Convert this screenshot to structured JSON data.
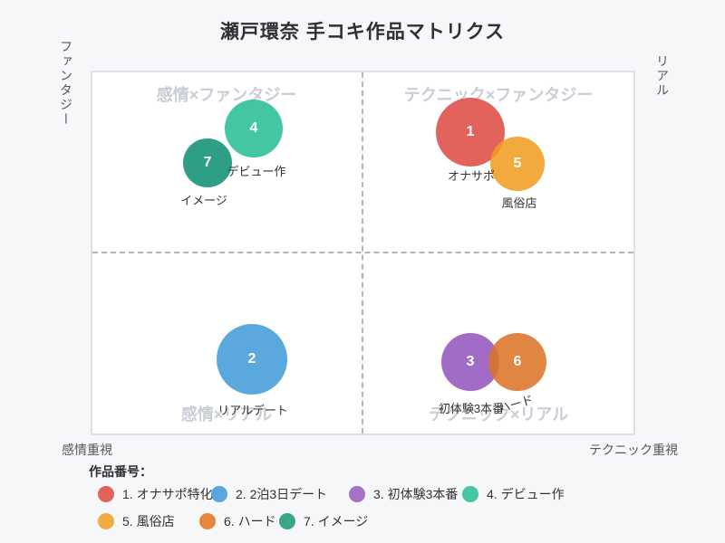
{
  "title": "瀬戸環奈 手コキ作品マトリクス",
  "axes": {
    "y_top_left": "ファンタジー",
    "y_top_right": "リアル",
    "x_left": "感情重視",
    "x_right": "テクニック重視"
  },
  "quadrants": [
    {
      "position": "top-left",
      "label": "感情×ファンタジー"
    },
    {
      "position": "top-right",
      "label": "テクニック×ファンタジー"
    },
    {
      "position": "bottom-left",
      "label": "感情×リアル"
    },
    {
      "position": "bottom-right",
      "label": "テクニック×リアル"
    }
  ],
  "chart_data": {
    "type": "scatter",
    "subtype": "bubble-quadrant-matrix",
    "x_axis": {
      "left": "感情重視",
      "right": "テクニック重視",
      "range": [
        0,
        1
      ]
    },
    "y_axis": {
      "bottom": "リアル",
      "top": "ファンタジー",
      "range": [
        0,
        1
      ]
    },
    "grid": "dashed-quadrant-split",
    "legend_position": "bottom",
    "points": [
      {
        "id": 1,
        "label": "オナサポ",
        "legend_label": "1. オナサポ特化",
        "quadrant": "テクニック×ファンタジー",
        "x": 0.7,
        "y": 0.83,
        "r": 38,
        "color": "#e2635c",
        "fill": "rgba(222,76,68,0.87)"
      },
      {
        "id": 2,
        "label": "リアルデート",
        "legend_label": "2. 2泊3日デート",
        "quadrant": "感情×リアル",
        "x": 0.297,
        "y": 0.206,
        "r": 39,
        "color": "#58a6dd",
        "fill": "rgba(65,155,217,0.87)"
      },
      {
        "id": 3,
        "label": "初体験3本番",
        "legend_label": "3. 初体験3本番",
        "quadrant": "テクニック×リアル",
        "x": 0.698,
        "y": 0.199,
        "r": 32,
        "color": "#a472c8",
        "fill": "rgba(146,86,188,0.87)"
      },
      {
        "id": 4,
        "label": "デビュー作",
        "legend_label": "4. デビュー作",
        "quadrant": "感情×ファンタジー",
        "x": 0.3,
        "y": 0.841,
        "r": 32,
        "color": "#48c6a4",
        "fill": "rgba(40,188,151,0.87)"
      },
      {
        "id": 5,
        "label": "風俗店",
        "legend_label": "5. 風俗店",
        "quadrant": "テクニック×ファンタジー",
        "x": 0.785,
        "y": 0.744,
        "r": 30,
        "color": "#f2ab42",
        "fill": "rgba(240,156,32,0.87)"
      },
      {
        "id": 6,
        "label": "ハード",
        "legend_label": "6. ハード",
        "quadrant": "テクニック×リアル",
        "x": 0.785,
        "y": 0.199,
        "r": 32,
        "color": "#e5873f",
        "fill": "rgba(219,115,40,0.87)"
      },
      {
        "id": 7,
        "label": "イメージ",
        "legend_label": "7. イメージ",
        "quadrant": "感情×ファンタジー",
        "x": 0.215,
        "y": 0.746,
        "r": 27,
        "color": "#39a689",
        "fill": "rgba(16,144,116,0.87)"
      }
    ]
  },
  "legend": {
    "heading": "作品番号：",
    "items": [
      {
        "label": "1. オナサポ特化",
        "color": "#e2635c"
      },
      {
        "label": "2. 2泊3日デート",
        "color": "#58a6dd"
      },
      {
        "label": "3. 初体験3本番",
        "color": "#a472c8"
      },
      {
        "label": "4. デビュー作",
        "color": "#48c6a4"
      },
      {
        "label": "5. 風俗店",
        "color": "#f2ab42"
      },
      {
        "label": "6. ハード",
        "color": "#e5873f"
      },
      {
        "label": "7. イメージ",
        "color": "#39a689"
      }
    ]
  }
}
